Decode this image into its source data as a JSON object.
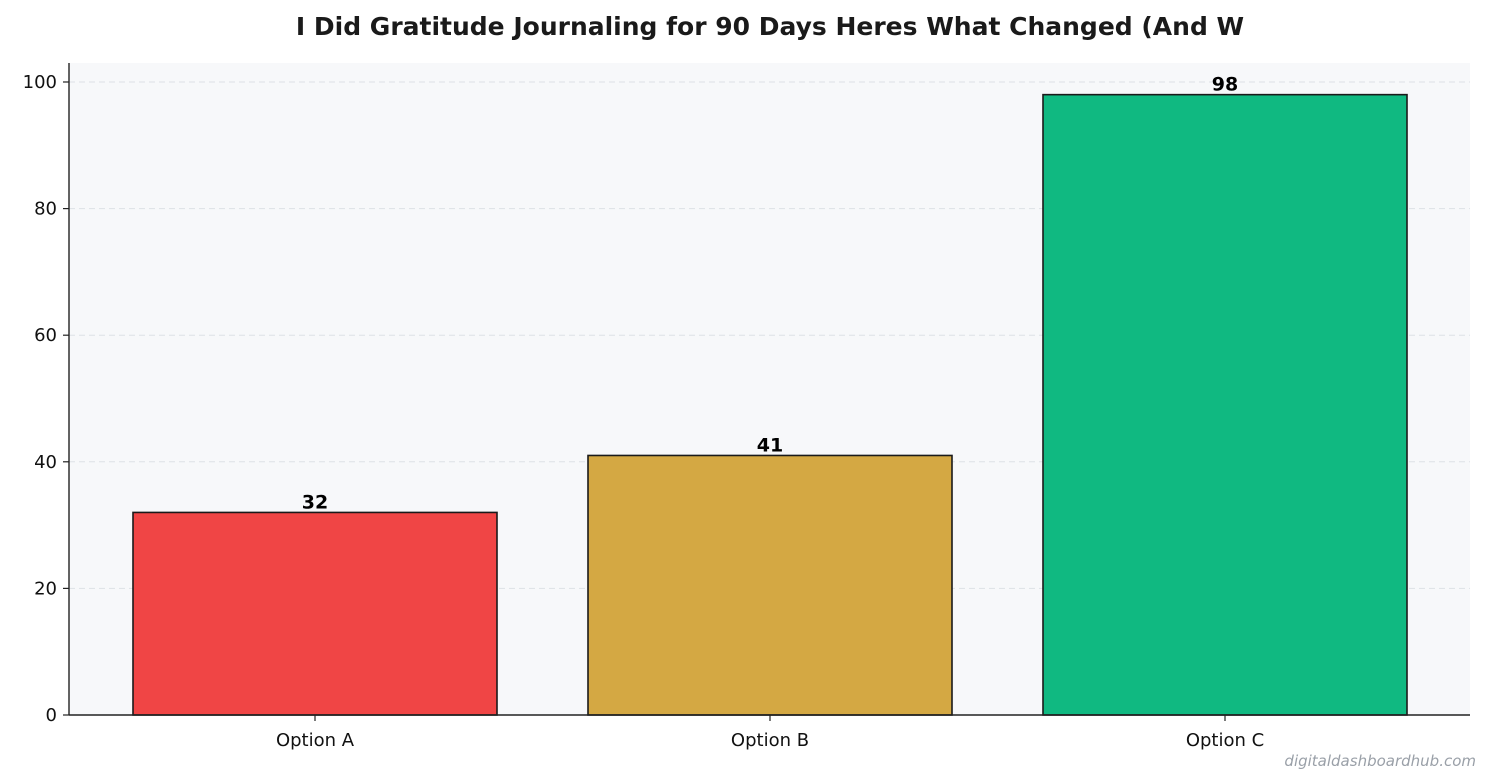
{
  "chart_data": {
    "type": "bar",
    "title": "I Did Gratitude Journaling for 90 Days  Heres What Changed (And W",
    "categories": [
      "Option A",
      "Option B",
      "Option C"
    ],
    "values": [
      32,
      41,
      98
    ],
    "bar_colors": [
      "#f04545",
      "#d4a843",
      "#10b981"
    ],
    "ylim": [
      0,
      103
    ],
    "yticks": [
      0,
      20,
      40,
      60,
      80,
      100
    ],
    "grid": true,
    "xlabel": "",
    "ylabel": ""
  },
  "watermark": "digitaldashboardhub.com",
  "colors": {
    "plot_background": "#f7f8fa",
    "axis": "#222222",
    "grid": "#dde1e6",
    "bar_edge": "#1a1a1a"
  }
}
